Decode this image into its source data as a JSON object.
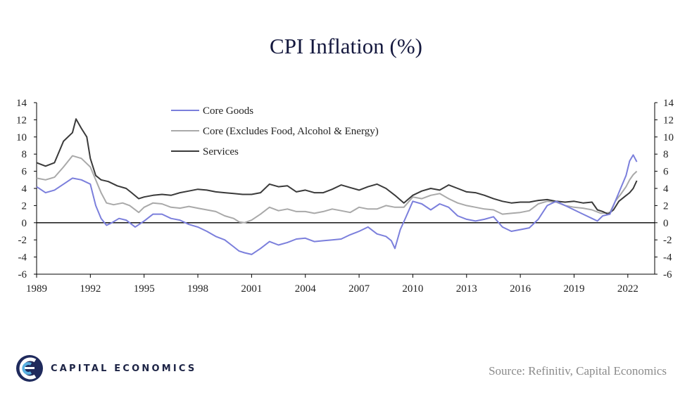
{
  "chart_data": {
    "type": "line",
    "title": "CPI Inflation (%)",
    "xlabel": "",
    "ylabel": "",
    "x_ticks": [
      "1989",
      "1992",
      "1995",
      "1998",
      "2001",
      "2004",
      "2007",
      "2010",
      "2013",
      "2016",
      "2019",
      "2022"
    ],
    "y_ticks_left": [
      "14",
      "12",
      "10",
      "8",
      "6",
      "4",
      "2",
      "0",
      "-2",
      "-4",
      "-6"
    ],
    "y_ticks_right": [
      "14",
      "12",
      "10",
      "8",
      "6",
      "4",
      "2",
      "0",
      "-2",
      "-4",
      "-6"
    ],
    "xlim": [
      1989,
      2023.5
    ],
    "ylim": [
      -6,
      14
    ],
    "legend_position": "top-left",
    "series": [
      {
        "name": "Core Goods",
        "color": "#7b7fdc",
        "x": [
          1989.0,
          1989.5,
          1990.0,
          1990.5,
          1991.0,
          1991.5,
          1992.0,
          1992.3,
          1992.6,
          1992.9,
          1993.2,
          1993.6,
          1994.0,
          1994.5,
          1995.0,
          1995.5,
          1996.0,
          1996.5,
          1997.0,
          1997.5,
          1998.0,
          1998.5,
          1999.0,
          1999.5,
          2000.0,
          2000.3,
          2000.6,
          2001.0,
          2001.5,
          2002.0,
          2002.5,
          2003.0,
          2003.5,
          2004.0,
          2004.5,
          2005.0,
          2005.5,
          2006.0,
          2006.5,
          2007.0,
          2007.5,
          2008.0,
          2008.5,
          2008.8,
          2009.0,
          2009.3,
          2009.6,
          2010.0,
          2010.5,
          2011.0,
          2011.5,
          2012.0,
          2012.5,
          2013.0,
          2013.5,
          2014.0,
          2014.5,
          2015.0,
          2015.5,
          2016.0,
          2016.5,
          2017.0,
          2017.5,
          2018.0,
          2018.5,
          2019.0,
          2019.5,
          2020.0,
          2020.3,
          2020.6,
          2021.0,
          2021.3,
          2021.6,
          2021.9,
          2022.1,
          2022.3,
          2022.5
        ],
        "values": [
          4.2,
          3.5,
          3.8,
          4.5,
          5.2,
          5.0,
          4.5,
          2.0,
          0.5,
          -0.3,
          0.0,
          0.5,
          0.3,
          -0.5,
          0.2,
          1.0,
          1.0,
          0.5,
          0.3,
          -0.2,
          -0.5,
          -1.0,
          -1.6,
          -2.0,
          -2.8,
          -3.3,
          -3.5,
          -3.7,
          -3.0,
          -2.2,
          -2.6,
          -2.3,
          -1.9,
          -1.8,
          -2.2,
          -2.1,
          -2.0,
          -1.9,
          -1.4,
          -1.0,
          -0.5,
          -1.3,
          -1.6,
          -2.1,
          -3.0,
          -0.8,
          0.6,
          2.5,
          2.2,
          1.5,
          2.2,
          1.8,
          0.8,
          0.4,
          0.2,
          0.4,
          0.7,
          -0.5,
          -1.0,
          -0.8,
          -0.6,
          0.4,
          2.0,
          2.5,
          2.0,
          1.5,
          1.0,
          0.5,
          0.2,
          0.8,
          1.0,
          2.5,
          4.0,
          5.5,
          7.2,
          7.9,
          7.1
        ]
      },
      {
        "name": "Core (Excludes Food, Alcohol & Energy)",
        "color": "#a9a9a9",
        "x": [
          1989.0,
          1989.5,
          1990.0,
          1990.5,
          1991.0,
          1991.5,
          1992.0,
          1992.3,
          1992.6,
          1992.9,
          1993.3,
          1993.8,
          1994.2,
          1994.7,
          1995.0,
          1995.5,
          1996.0,
          1996.5,
          1997.0,
          1997.5,
          1998.0,
          1998.5,
          1999.0,
          1999.5,
          2000.0,
          2000.3,
          2000.6,
          2001.0,
          2001.5,
          2002.0,
          2002.5,
          2003.0,
          2003.5,
          2004.0,
          2004.5,
          2005.0,
          2005.5,
          2006.0,
          2006.5,
          2007.0,
          2007.5,
          2008.0,
          2008.5,
          2009.0,
          2009.5,
          2010.0,
          2010.5,
          2011.0,
          2011.5,
          2012.0,
          2012.5,
          2013.0,
          2013.5,
          2014.0,
          2014.5,
          2015.0,
          2015.5,
          2016.0,
          2016.5,
          2017.0,
          2017.5,
          2018.0,
          2018.5,
          2019.0,
          2019.5,
          2020.0,
          2020.5,
          2021.0,
          2021.3,
          2021.6,
          2021.9,
          2022.1,
          2022.3,
          2022.5
        ],
        "values": [
          5.2,
          5.0,
          5.3,
          6.5,
          7.8,
          7.5,
          6.5,
          5.0,
          3.5,
          2.3,
          2.1,
          2.3,
          2.0,
          1.2,
          1.8,
          2.3,
          2.2,
          1.8,
          1.7,
          1.9,
          1.7,
          1.5,
          1.3,
          0.8,
          0.5,
          0.1,
          0.0,
          0.3,
          1.0,
          1.8,
          1.4,
          1.6,
          1.3,
          1.3,
          1.1,
          1.3,
          1.6,
          1.4,
          1.2,
          1.8,
          1.6,
          1.6,
          2.0,
          1.8,
          1.8,
          3.0,
          2.8,
          3.2,
          3.4,
          2.8,
          2.3,
          2.0,
          1.8,
          1.6,
          1.5,
          1.0,
          1.1,
          1.2,
          1.4,
          2.2,
          2.5,
          2.4,
          2.0,
          1.8,
          1.7,
          1.5,
          1.1,
          1.2,
          2.5,
          3.3,
          4.2,
          5.0,
          5.6,
          6.0
        ]
      },
      {
        "name": "Services",
        "color": "#3a3a3a",
        "x": [
          1989.0,
          1989.5,
          1990.0,
          1990.5,
          1991.0,
          1991.2,
          1991.5,
          1991.8,
          1992.0,
          1992.3,
          1992.6,
          1993.0,
          1993.5,
          1994.0,
          1994.3,
          1994.7,
          1995.0,
          1995.5,
          1996.0,
          1996.5,
          1997.0,
          1997.5,
          1998.0,
          1998.5,
          1999.0,
          1999.5,
          2000.0,
          2000.5,
          2001.0,
          2001.5,
          2002.0,
          2002.5,
          2003.0,
          2003.5,
          2004.0,
          2004.5,
          2005.0,
          2005.5,
          2006.0,
          2006.5,
          2007.0,
          2007.5,
          2008.0,
          2008.5,
          2009.0,
          2009.5,
          2010.0,
          2010.5,
          2011.0,
          2011.5,
          2012.0,
          2012.5,
          2013.0,
          2013.5,
          2014.0,
          2014.5,
          2015.0,
          2015.5,
          2016.0,
          2016.5,
          2017.0,
          2017.5,
          2018.0,
          2018.5,
          2019.0,
          2019.5,
          2020.0,
          2020.3,
          2020.6,
          2020.9,
          2021.2,
          2021.5,
          2021.8,
          2022.1,
          2022.3,
          2022.5
        ],
        "values": [
          7.0,
          6.6,
          7.0,
          9.5,
          10.5,
          12.1,
          11.0,
          10.0,
          7.5,
          5.5,
          5.0,
          4.8,
          4.3,
          4.0,
          3.5,
          2.8,
          3.0,
          3.2,
          3.3,
          3.2,
          3.5,
          3.7,
          3.9,
          3.8,
          3.6,
          3.5,
          3.4,
          3.3,
          3.3,
          3.5,
          4.5,
          4.2,
          4.3,
          3.6,
          3.8,
          3.5,
          3.5,
          3.9,
          4.4,
          4.1,
          3.8,
          4.2,
          4.5,
          4.0,
          3.2,
          2.3,
          3.2,
          3.7,
          4.0,
          3.8,
          4.4,
          4.0,
          3.6,
          3.5,
          3.2,
          2.8,
          2.5,
          2.3,
          2.4,
          2.4,
          2.6,
          2.7,
          2.5,
          2.4,
          2.5,
          2.3,
          2.4,
          1.5,
          1.3,
          1.0,
          1.5,
          2.5,
          3.0,
          3.5,
          4.0,
          4.9
        ]
      }
    ]
  },
  "source_text": "Source: Refinitiv, Capital Economics",
  "brand": {
    "name": "CAPITAL ECONOMICS"
  }
}
